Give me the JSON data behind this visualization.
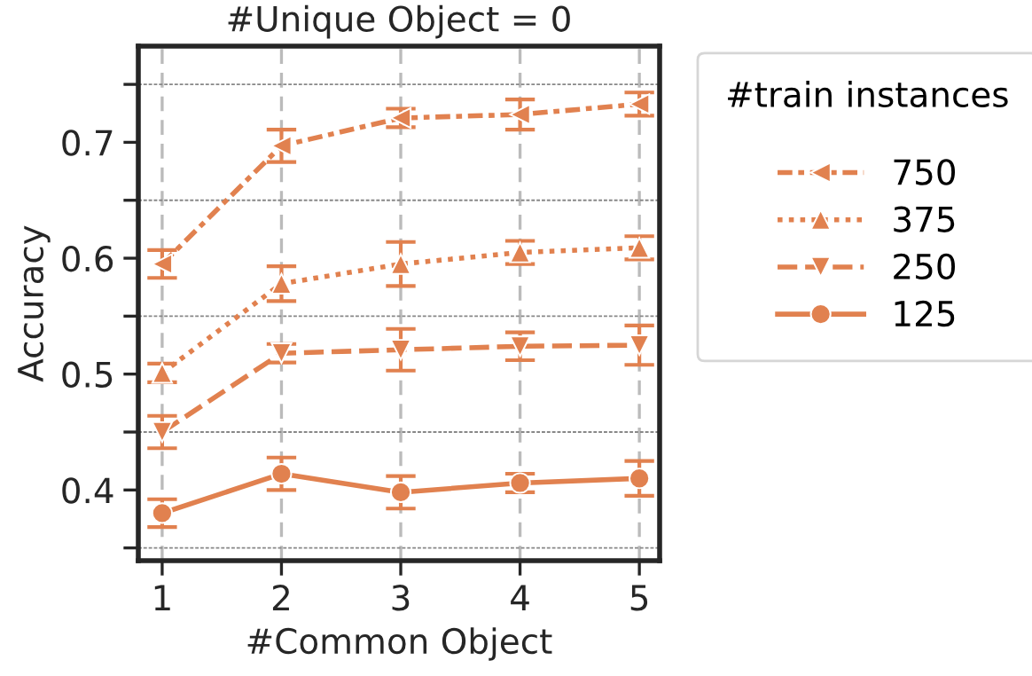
{
  "chart_data": {
    "type": "line",
    "title": "#Unique Object = 0",
    "xlabel": "#Common Object",
    "ylabel": "Accuracy",
    "legend_title": "#train instances",
    "legend": "right",
    "grid": true,
    "x": [
      1,
      2,
      3,
      4,
      5
    ],
    "xlim": [
      0.8,
      5.17
    ],
    "xticks": [
      1,
      2,
      3,
      4,
      5
    ],
    "ylim": [
      0.339,
      0.783
    ],
    "yticks": [
      {
        "value": 0.35,
        "label": null
      },
      0.4,
      {
        "value": 0.45,
        "label": null
      },
      0.5,
      {
        "value": 0.55,
        "label": null
      },
      0.6,
      {
        "value": 0.65,
        "label": null
      },
      0.7,
      {
        "value": 0.75,
        "label": null
      }
    ],
    "series": [
      {
        "name": "750",
        "color": "#e1814f",
        "marker": "triangle_left",
        "line_style": "dashdot",
        "values": [
          0.595,
          0.697,
          0.721,
          0.724,
          0.733
        ],
        "errors": [
          0.012,
          0.014,
          0.008,
          0.013,
          0.01
        ]
      },
      {
        "name": "375",
        "color": "#e1814f",
        "marker": "triangle",
        "line_style": "dotted",
        "values": [
          0.501,
          0.578,
          0.595,
          0.605,
          0.609
        ],
        "errors": [
          0.008,
          0.015,
          0.019,
          0.01,
          0.01
        ]
      },
      {
        "name": "250",
        "color": "#e1814f",
        "marker": "triangle_down",
        "line_style": "dashed",
        "values": [
          0.45,
          0.518,
          0.521,
          0.524,
          0.525
        ],
        "errors": [
          0.014,
          0.008,
          0.018,
          0.012,
          0.017
        ]
      },
      {
        "name": "125",
        "color": "#e1814f",
        "marker": "circle",
        "line_style": "solid",
        "values": [
          0.38,
          0.414,
          0.398,
          0.406,
          0.41
        ],
        "errors": [
          0.012,
          0.014,
          0.014,
          0.008,
          0.015
        ]
      }
    ]
  }
}
